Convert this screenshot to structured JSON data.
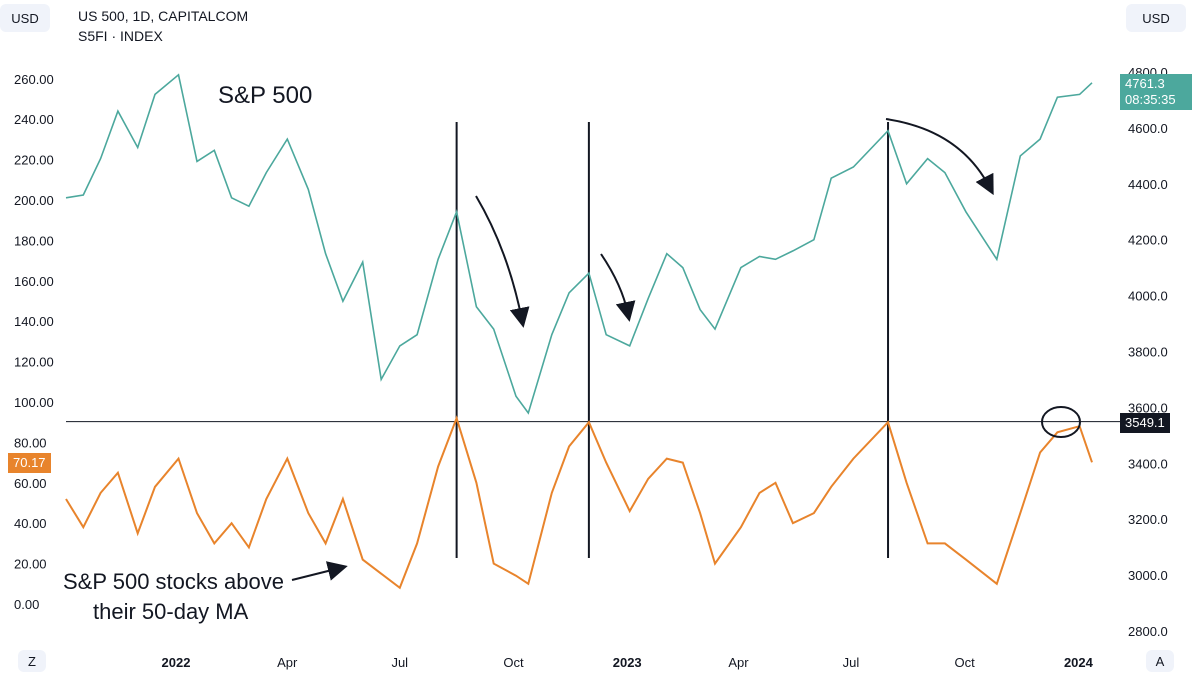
{
  "header": {
    "currency_left": "USD",
    "currency_right": "USD",
    "title": "US 500, 1D, CAPITALCOM",
    "subtitle": "S5FI · INDEX",
    "bottom_left_btn": "Z",
    "bottom_right_btn": "A"
  },
  "badges": {
    "price_last": "4761.3",
    "price_timer": "08:35:35",
    "breadth_last": "70.17",
    "crosshair_price": "3549.1",
    "price_color": "#4ca89d",
    "breadth_color": "#e8842c",
    "crosshair_color": "#131722"
  },
  "annotations": {
    "sp500_label": "S&P 500",
    "breadth_label_line1": "S&P 500 stocks above",
    "breadth_label_line2": "their 50-day MA"
  },
  "chart_data": [
    {
      "type": "line",
      "name": "US 500 daily price",
      "x": [
        "2021-10-04",
        "2021-10-18",
        "2021-11-01",
        "2021-11-15",
        "2021-12-01",
        "2021-12-15",
        "2022-01-03",
        "2022-01-18",
        "2022-02-01",
        "2022-02-15",
        "2022-03-01",
        "2022-03-15",
        "2022-04-01",
        "2022-04-18",
        "2022-05-02",
        "2022-05-16",
        "2022-06-01",
        "2022-06-16",
        "2022-07-01",
        "2022-07-15",
        "2022-08-01",
        "2022-08-16",
        "2022-09-01",
        "2022-09-15",
        "2022-10-03",
        "2022-10-13",
        "2022-11-01",
        "2022-11-15",
        "2022-12-01",
        "2022-12-15",
        "2023-01-03",
        "2023-01-18",
        "2023-02-02",
        "2023-02-15",
        "2023-03-01",
        "2023-03-13",
        "2023-04-03",
        "2023-04-18",
        "2023-05-01",
        "2023-05-15",
        "2023-06-01",
        "2023-06-15",
        "2023-07-03",
        "2023-07-31",
        "2023-08-15",
        "2023-09-01",
        "2023-09-15",
        "2023-10-02",
        "2023-10-27",
        "2023-11-15",
        "2023-12-01",
        "2023-12-15",
        "2024-01-02",
        "2024-01-12"
      ],
      "values": [
        4350,
        4360,
        4490,
        4660,
        4530,
        4720,
        4790,
        4480,
        4520,
        4350,
        4320,
        4440,
        4560,
        4380,
        4150,
        3980,
        4120,
        3700,
        3820,
        3860,
        4130,
        4300,
        3960,
        3880,
        3640,
        3580,
        3860,
        4010,
        4080,
        3860,
        3820,
        3990,
        4150,
        4100,
        3950,
        3880,
        4100,
        4140,
        4130,
        4160,
        4200,
        4420,
        4460,
        4590,
        4400,
        4490,
        4440,
        4300,
        4130,
        4500,
        4560,
        4710,
        4720,
        4761.3
      ],
      "ylim": [
        2800,
        4800
      ],
      "y_ticks": [
        "2800.0",
        "3000.0",
        "3200.0",
        "3400.0",
        "3600.0",
        "3800.0",
        "4000.0",
        "4200.0",
        "4400.0",
        "4600.0",
        "4800.0"
      ],
      "color": "#4ca89d"
    },
    {
      "type": "line",
      "name": "S5FI",
      "x": [
        "2021-10-04",
        "2021-10-18",
        "2021-11-01",
        "2021-11-15",
        "2021-12-01",
        "2021-12-15",
        "2022-01-03",
        "2022-01-18",
        "2022-02-01",
        "2022-02-15",
        "2022-03-01",
        "2022-03-15",
        "2022-04-01",
        "2022-04-18",
        "2022-05-02",
        "2022-05-16",
        "2022-06-01",
        "2022-06-16",
        "2022-07-01",
        "2022-07-15",
        "2022-08-01",
        "2022-08-16",
        "2022-09-01",
        "2022-09-15",
        "2022-10-03",
        "2022-10-13",
        "2022-11-01",
        "2022-11-15",
        "2022-12-01",
        "2022-12-15",
        "2023-01-03",
        "2023-01-18",
        "2023-02-02",
        "2023-02-15",
        "2023-03-01",
        "2023-03-13",
        "2023-04-03",
        "2023-04-18",
        "2023-05-01",
        "2023-05-15",
        "2023-06-01",
        "2023-06-15",
        "2023-07-03",
        "2023-07-31",
        "2023-08-15",
        "2023-09-01",
        "2023-09-15",
        "2023-10-02",
        "2023-10-27",
        "2023-11-15",
        "2023-12-01",
        "2023-12-15",
        "2024-01-02",
        "2024-01-12"
      ],
      "values": [
        52,
        38,
        55,
        65,
        35,
        58,
        72,
        45,
        30,
        40,
        28,
        52,
        72,
        45,
        30,
        52,
        22,
        15,
        8,
        30,
        68,
        92,
        60,
        20,
        14,
        10,
        55,
        78,
        90,
        70,
        46,
        62,
        72,
        70,
        45,
        20,
        38,
        55,
        60,
        40,
        45,
        58,
        72,
        90,
        60,
        30,
        30,
        22,
        10,
        45,
        75,
        85,
        88,
        70.17
      ],
      "ylim": [
        0,
        100
      ],
      "y_ticks": [
        "0.00",
        "20.00",
        "40.00",
        "60.00",
        "80.00",
        "100.00",
        "120.00",
        "140.00",
        "160.00",
        "180.00",
        "200.00",
        "220.00",
        "240.00",
        "260.00"
      ],
      "color": "#e8842c"
    }
  ],
  "x_axis_ticks": [
    {
      "label": "2022",
      "date": "2022-01-01",
      "bold": true
    },
    {
      "label": "Apr",
      "date": "2022-04-01",
      "bold": false
    },
    {
      "label": "Jul",
      "date": "2022-07-01",
      "bold": false
    },
    {
      "label": "Oct",
      "date": "2022-10-01",
      "bold": false
    },
    {
      "label": "2023",
      "date": "2023-01-01",
      "bold": true
    },
    {
      "label": "Apr",
      "date": "2023-04-01",
      "bold": false
    },
    {
      "label": "Jul",
      "date": "2023-07-01",
      "bold": false
    },
    {
      "label": "Oct",
      "date": "2023-10-01",
      "bold": false
    },
    {
      "label": "2024",
      "date": "2024-01-01",
      "bold": true
    }
  ],
  "vertical_markers": [
    "2022-08-16",
    "2022-12-01",
    "2023-07-31"
  ],
  "horizontal_marker_value": 3549.1
}
